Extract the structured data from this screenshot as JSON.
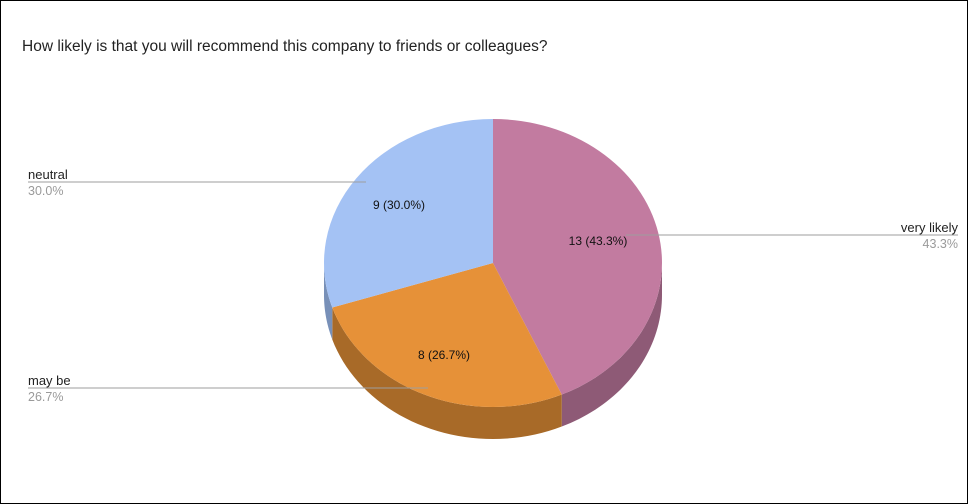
{
  "chart_data": {
    "type": "pie",
    "style": "3d",
    "title": "How likely is that you will recommend this company to friends or colleagues?",
    "slices": [
      {
        "name": "very likely",
        "value": 13,
        "percent_label": "43.3%",
        "inner_label": "13 (43.3%)",
        "color": "#c27ba0",
        "side_color": "#8e5a76"
      },
      {
        "name": "may be",
        "value": 8,
        "percent_label": "26.7%",
        "inner_label": "8 (26.7%)",
        "color": "#e69138",
        "side_color": "#a86a28"
      },
      {
        "name": "neutral",
        "value": 9,
        "percent_label": "30.0%",
        "inner_label": "9 (30.0%)",
        "color": "#a4c2f4",
        "side_color": "#7890b8"
      }
    ],
    "legend": "labeled-outside"
  }
}
